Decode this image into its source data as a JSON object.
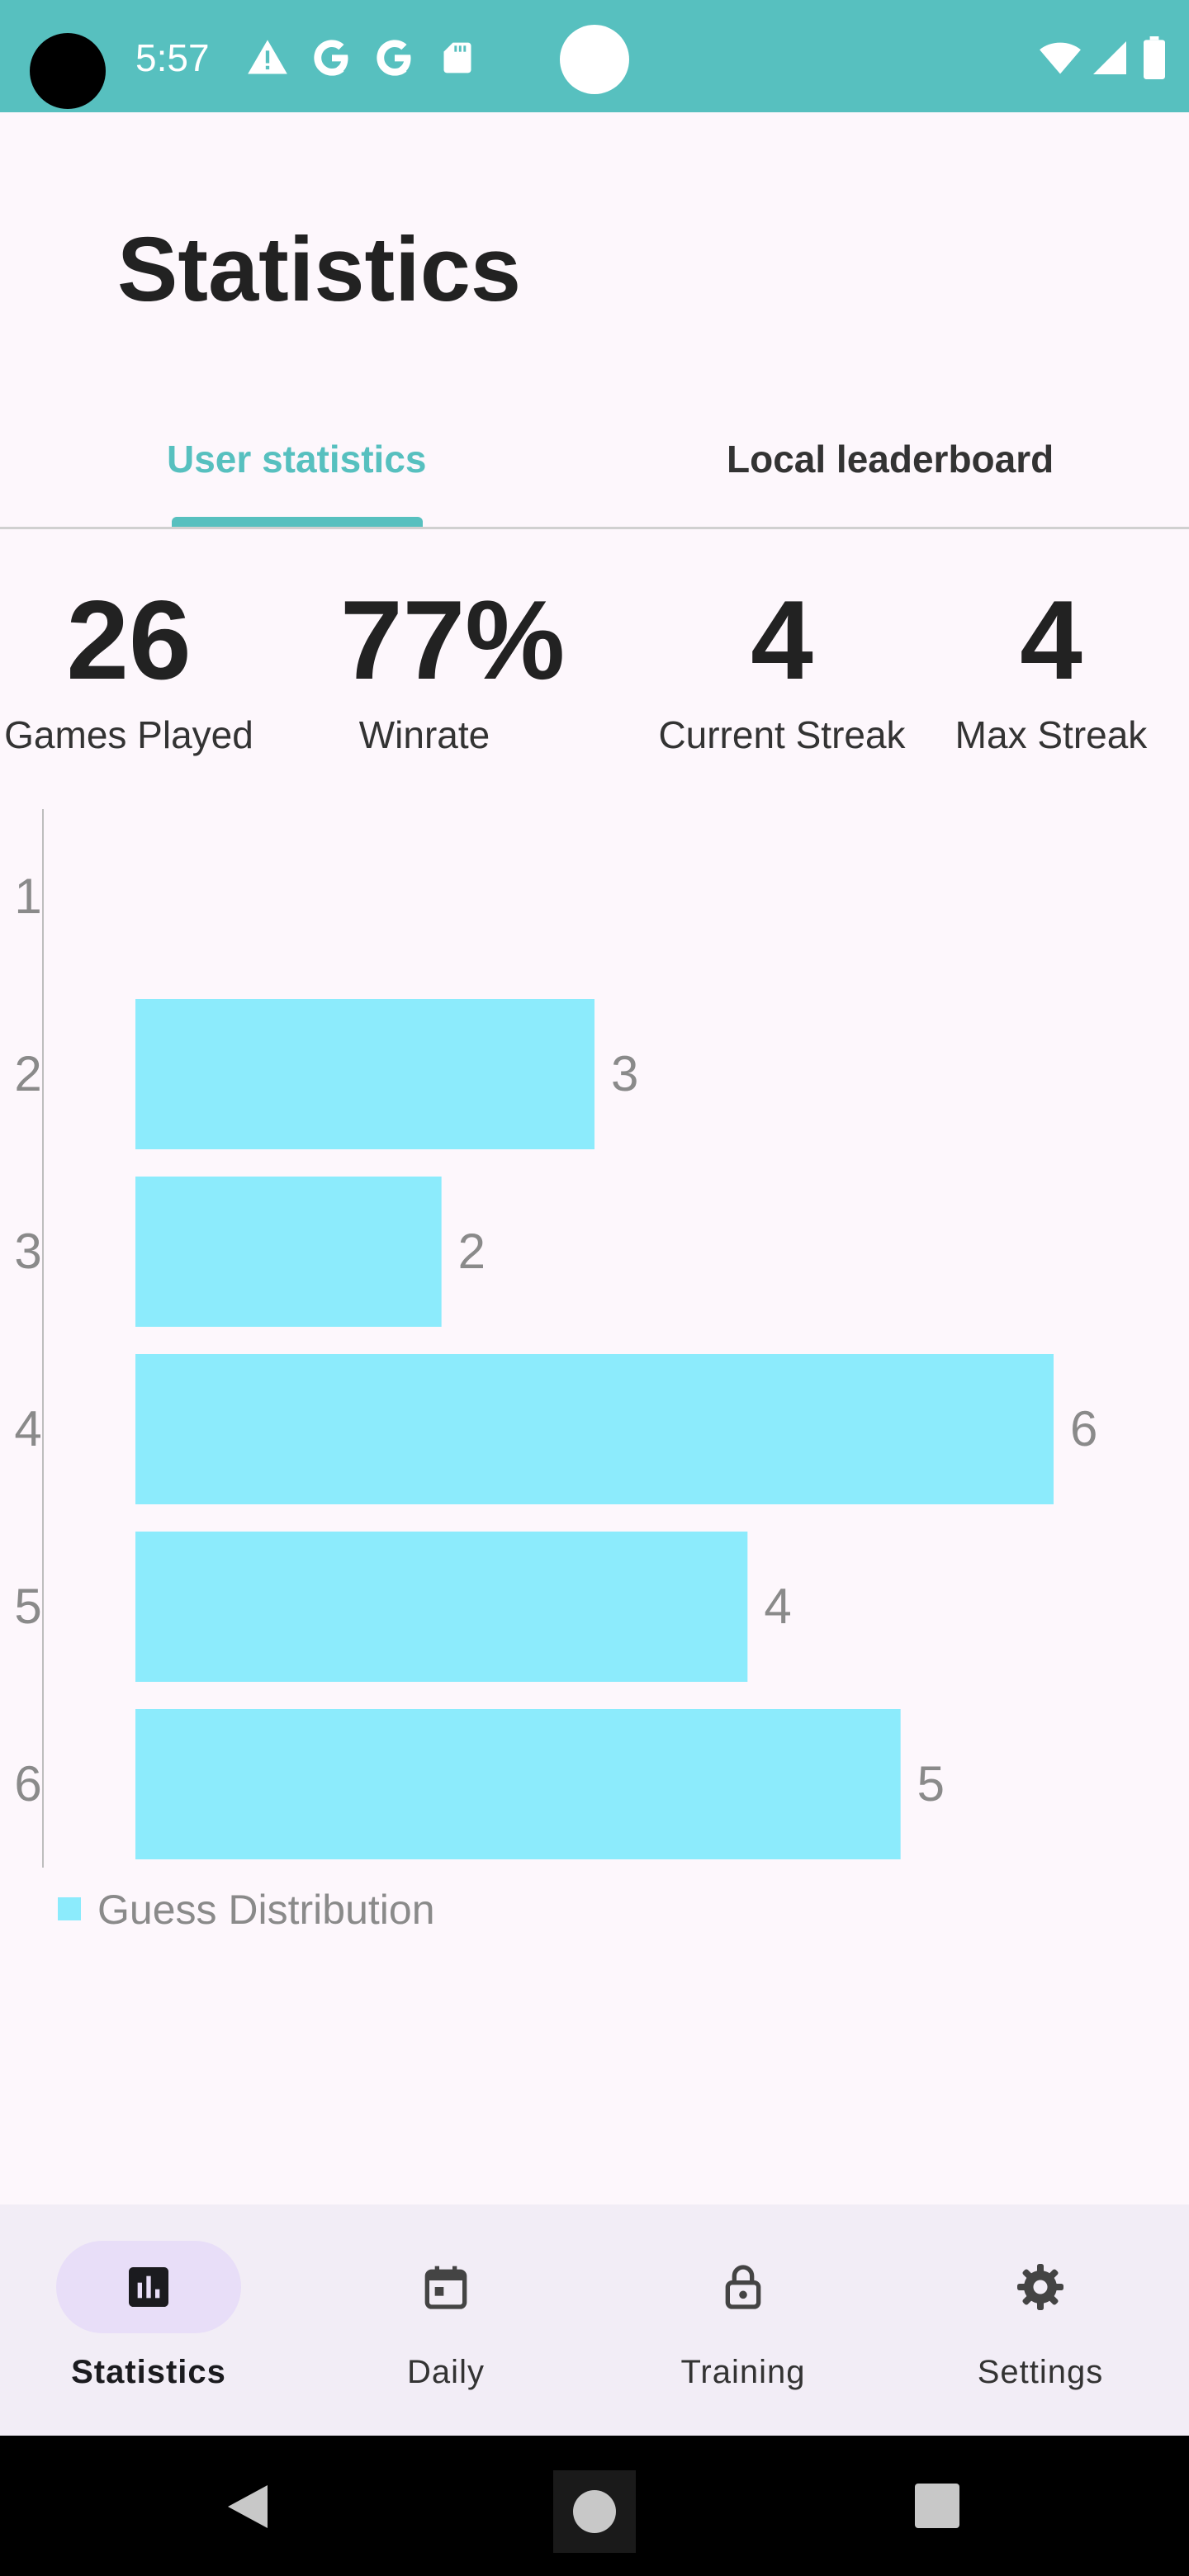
{
  "status_bar": {
    "time": "5:57",
    "icons": [
      "warning-icon",
      "google-icon",
      "google-icon",
      "sd-card-icon",
      "wifi-icon",
      "signal-icon",
      "battery-icon"
    ]
  },
  "page_title": "Statistics",
  "tabs": [
    {
      "label": "User statistics",
      "active": true
    },
    {
      "label": "Local leaderboard",
      "active": false
    }
  ],
  "stats": [
    {
      "value": "26",
      "label": "Games Played"
    },
    {
      "value": "77%",
      "label": "Winrate"
    },
    {
      "value": "4",
      "label": "Current Streak"
    },
    {
      "value": "4",
      "label": "Max Streak"
    }
  ],
  "chart_data": {
    "type": "bar",
    "orientation": "horizontal",
    "categories": [
      "1",
      "2",
      "3",
      "4",
      "5",
      "6"
    ],
    "series": [
      {
        "name": "Guess Distribution",
        "values": [
          0,
          3,
          2,
          6,
          4,
          5
        ]
      }
    ],
    "value_labels": [
      "",
      "3",
      "2",
      "6",
      "4",
      "5"
    ],
    "bar_color": "#8CEBFC",
    "legend": "bottom-left",
    "grid": false,
    "xlim": [
      0,
      6
    ]
  },
  "bottom_nav": [
    {
      "label": "Statistics",
      "icon": "bar-chart-icon",
      "active": true
    },
    {
      "label": "Daily",
      "icon": "calendar-icon",
      "active": false
    },
    {
      "label": "Training",
      "icon": "lock-icon",
      "active": false
    },
    {
      "label": "Settings",
      "icon": "gear-icon",
      "active": false
    }
  ],
  "colors": {
    "accent": "#57C0BF",
    "background": "#FDF7FC",
    "bar": "#8CEBFC",
    "nav_background": "#F2EDF6",
    "nav_active_pill": "#E8DEF8"
  }
}
